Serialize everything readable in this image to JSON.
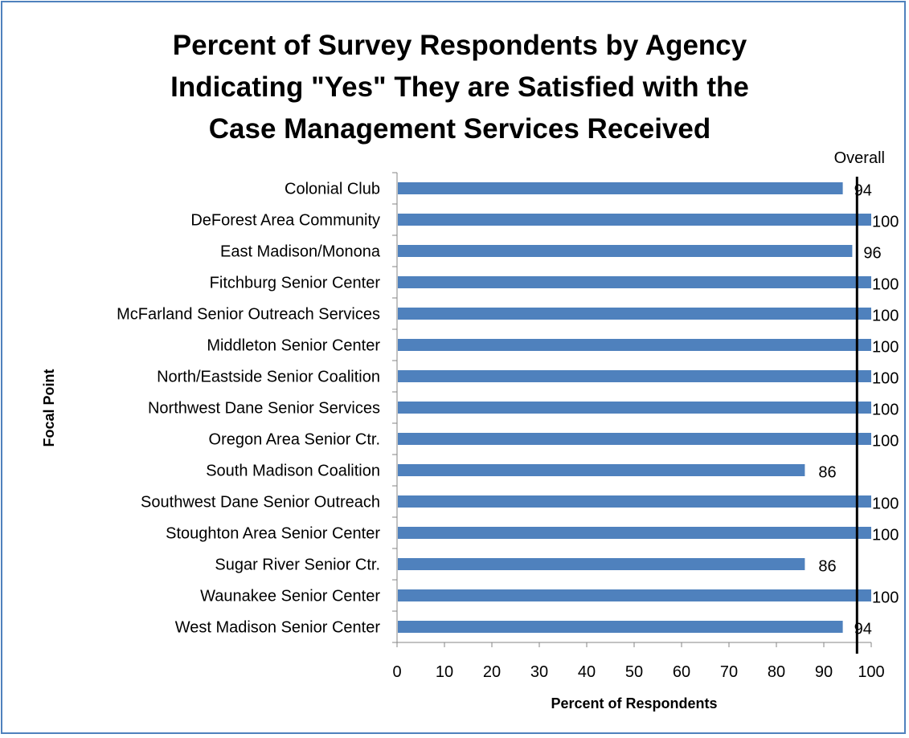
{
  "chart_data": {
    "type": "bar",
    "orientation": "horizontal",
    "title_lines": [
      "Percent of Survey Respondents by Agency",
      "Indicating \"Yes\" They are Satisfied with the",
      "Case Management Services Received"
    ],
    "xlabel": "Percent of Respondents",
    "ylabel": "Focal Point",
    "xlim": [
      0,
      100
    ],
    "xticks": [
      "0",
      "10",
      "20",
      "30",
      "40",
      "50",
      "60",
      "70",
      "80",
      "90",
      "100"
    ],
    "categories": [
      "Colonial Club",
      "DeForest Area Community",
      "East Madison/Monona",
      "Fitchburg Senior Center",
      "McFarland Senior Outreach Services",
      "Middleton Senior Center",
      "North/Eastside Senior Coalition",
      "Northwest Dane Senior Services",
      "Oregon Area Senior Ctr.",
      "South Madison Coalition",
      "Southwest Dane Senior Outreach",
      "Stoughton Area Senior Center",
      "Sugar River Senior Ctr.",
      "Waunakee Senior Center",
      "West Madison Senior Center"
    ],
    "values": [
      94,
      100,
      96,
      100,
      100,
      100,
      100,
      100,
      100,
      86,
      100,
      100,
      86,
      100,
      94
    ],
    "data_labels": [
      "94",
      "100",
      "96",
      "100",
      "100",
      "100",
      "100",
      "100",
      "100",
      "86",
      "100",
      "100",
      "86",
      "100",
      "94"
    ],
    "reference_line": {
      "label": "Overall",
      "value": 97
    },
    "bar_color": "#4f81bd",
    "border_color": "#4f81bd",
    "grid": false
  }
}
